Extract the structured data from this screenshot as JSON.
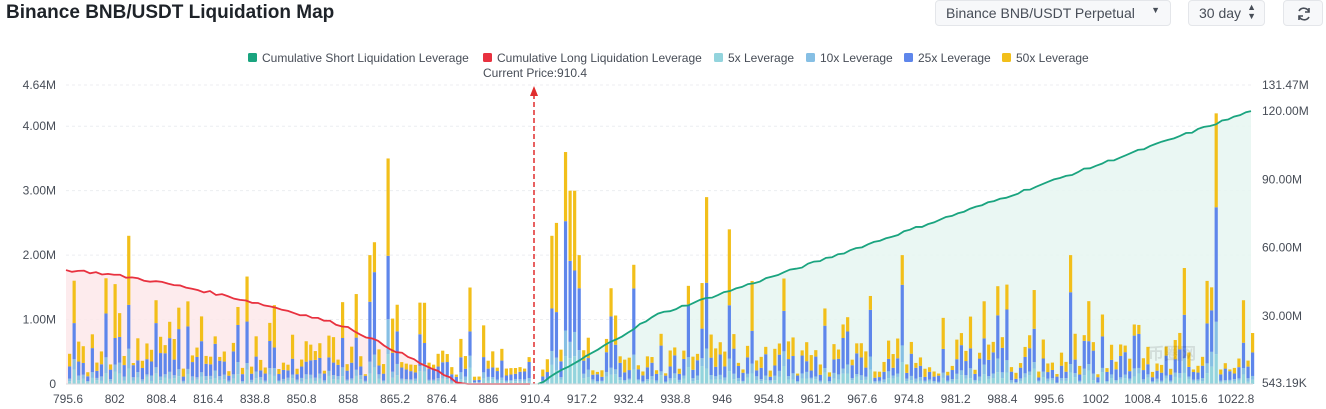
{
  "page": {
    "title": "Binance BNB/USDT Liquidation Map",
    "pair_select": "Binance BNB/USDT Perpetual",
    "period_select": "30 day"
  },
  "watermark": "币圈网",
  "icons": {
    "refresh": "refresh-icon",
    "pair_caret": "caret-down-icon",
    "period_spin": "up-down-stepper-icon"
  },
  "colors": {
    "short_cum": "#1aa47f",
    "short_fill": "#e6f6f1",
    "long_cum": "#e8313f",
    "long_fill": "#fde8ea",
    "lev5": "#93d4dd",
    "lev10": "#86bfe4",
    "lev25": "#5e86eb",
    "lev50": "#f2bf1a",
    "price_line": "#e02d2d",
    "grid": "#eceef1",
    "axis_text": "#474d57"
  },
  "chart_data": {
    "type": "bar",
    "current_price_label": "Current Price:910.4",
    "current_price": 910.4,
    "legend": [
      {
        "key": "short_cum",
        "label": "Cumulative Short Liquidation Leverage",
        "color": "#1aa47f"
      },
      {
        "key": "long_cum",
        "label": "Cumulative Long Liquidation Leverage",
        "color": "#e8313f"
      },
      {
        "key": "lev5",
        "label": "5x Leverage",
        "color": "#93d4dd"
      },
      {
        "key": "lev10",
        "label": "10x Leverage",
        "color": "#86bfe4"
      },
      {
        "key": "lev25",
        "label": "25x Leverage",
        "color": "#5e86eb"
      },
      {
        "key": "lev50",
        "label": "50x Leverage",
        "color": "#f2bf1a"
      }
    ],
    "x_labels": [
      "795.6",
      "802",
      "808.4",
      "816.4",
      "838.8",
      "850.8",
      "858",
      "865.2",
      "876.4",
      "886",
      "910.4",
      "917.2",
      "932.4",
      "938.8",
      "946",
      "954.8",
      "961.2",
      "967.6",
      "974.8",
      "981.2",
      "988.4",
      "995.6",
      "1002",
      "1008.4",
      "1015.6",
      "1022.8"
    ],
    "left_axis": {
      "ticks": [
        "0",
        "1.00M",
        "2.00M",
        "3.00M",
        "4.00M",
        "4.64M"
      ],
      "ylim": [
        0,
        4.64
      ]
    },
    "right_axis": {
      "ticks": [
        "543.19K",
        "30.00M",
        "60.00M",
        "90.00M",
        "120.00M",
        "131.47M"
      ],
      "ylim": [
        0,
        131.47
      ]
    },
    "long_cumulative": {
      "start": 1.76,
      "end": 0
    },
    "short_cumulative": {
      "start": 0,
      "end": 120
    }
  }
}
